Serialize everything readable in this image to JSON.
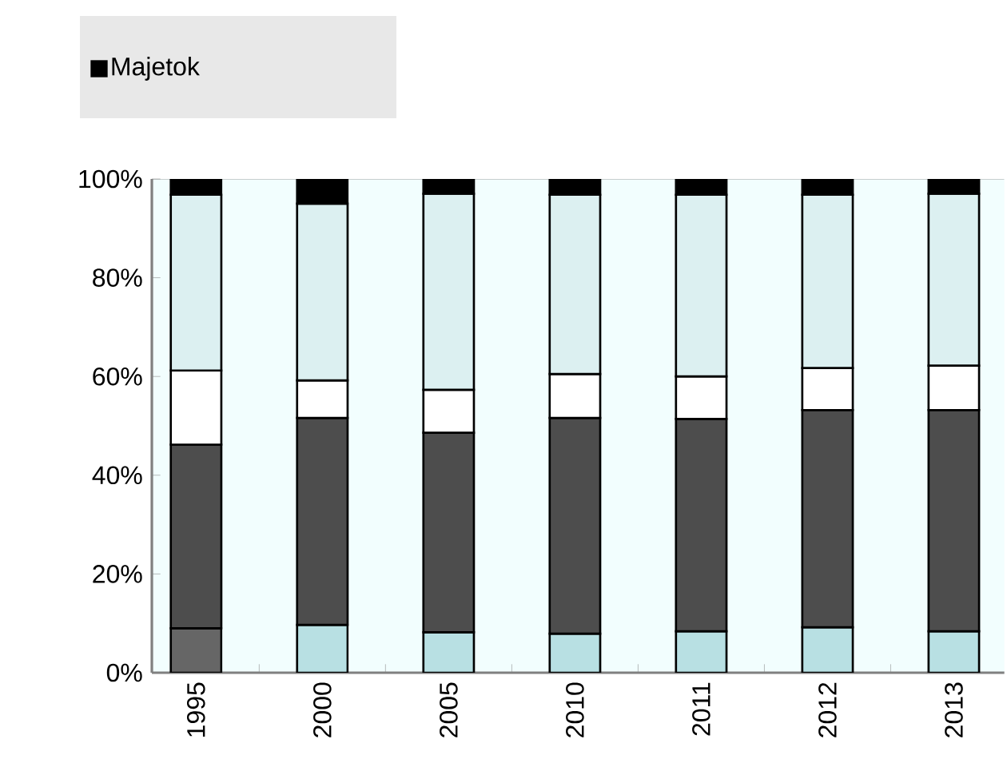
{
  "chart_data": {
    "type": "bar",
    "stacked": true,
    "categories": [
      "1995",
      "2000",
      "2005",
      "2010",
      "2011",
      "2012",
      "2013"
    ],
    "series": [
      {
        "color": "#b8e0e3",
        "colors": [
          "#666666",
          "#b8e0e3",
          "#b8e0e3",
          "#b8e0e3",
          "#b8e0e3",
          "#b8e0e3",
          "#b8e0e3"
        ],
        "values": [
          9.0,
          9.7,
          8.2,
          7.9,
          8.4,
          9.2,
          8.4
        ]
      },
      {
        "color": "#4d4d4d",
        "values": [
          37.2,
          41.9,
          40.4,
          43.7,
          43.0,
          44.0,
          44.8
        ]
      },
      {
        "color": "#ffffff",
        "values": [
          15.0,
          7.6,
          8.7,
          8.9,
          8.6,
          8.5,
          9.0
        ]
      },
      {
        "color": "#dcf0f1",
        "values": [
          35.6,
          35.8,
          39.7,
          36.3,
          36.8,
          35.1,
          34.8
        ]
      },
      {
        "name": "Majetok",
        "color": "#000000",
        "values": [
          3.2,
          5.0,
          3.0,
          3.2,
          3.2,
          3.2,
          3.0
        ]
      }
    ],
    "ylim": [
      0,
      100
    ],
    "yticks": [
      {
        "value": 0,
        "label": "0%"
      },
      {
        "value": 20,
        "label": "20%"
      },
      {
        "value": 40,
        "label": "40%"
      },
      {
        "value": 60,
        "label": "60%"
      },
      {
        "value": 80,
        "label": "80%"
      },
      {
        "value": 100,
        "label": "100%"
      }
    ],
    "legend": "top left",
    "grid": false
  }
}
